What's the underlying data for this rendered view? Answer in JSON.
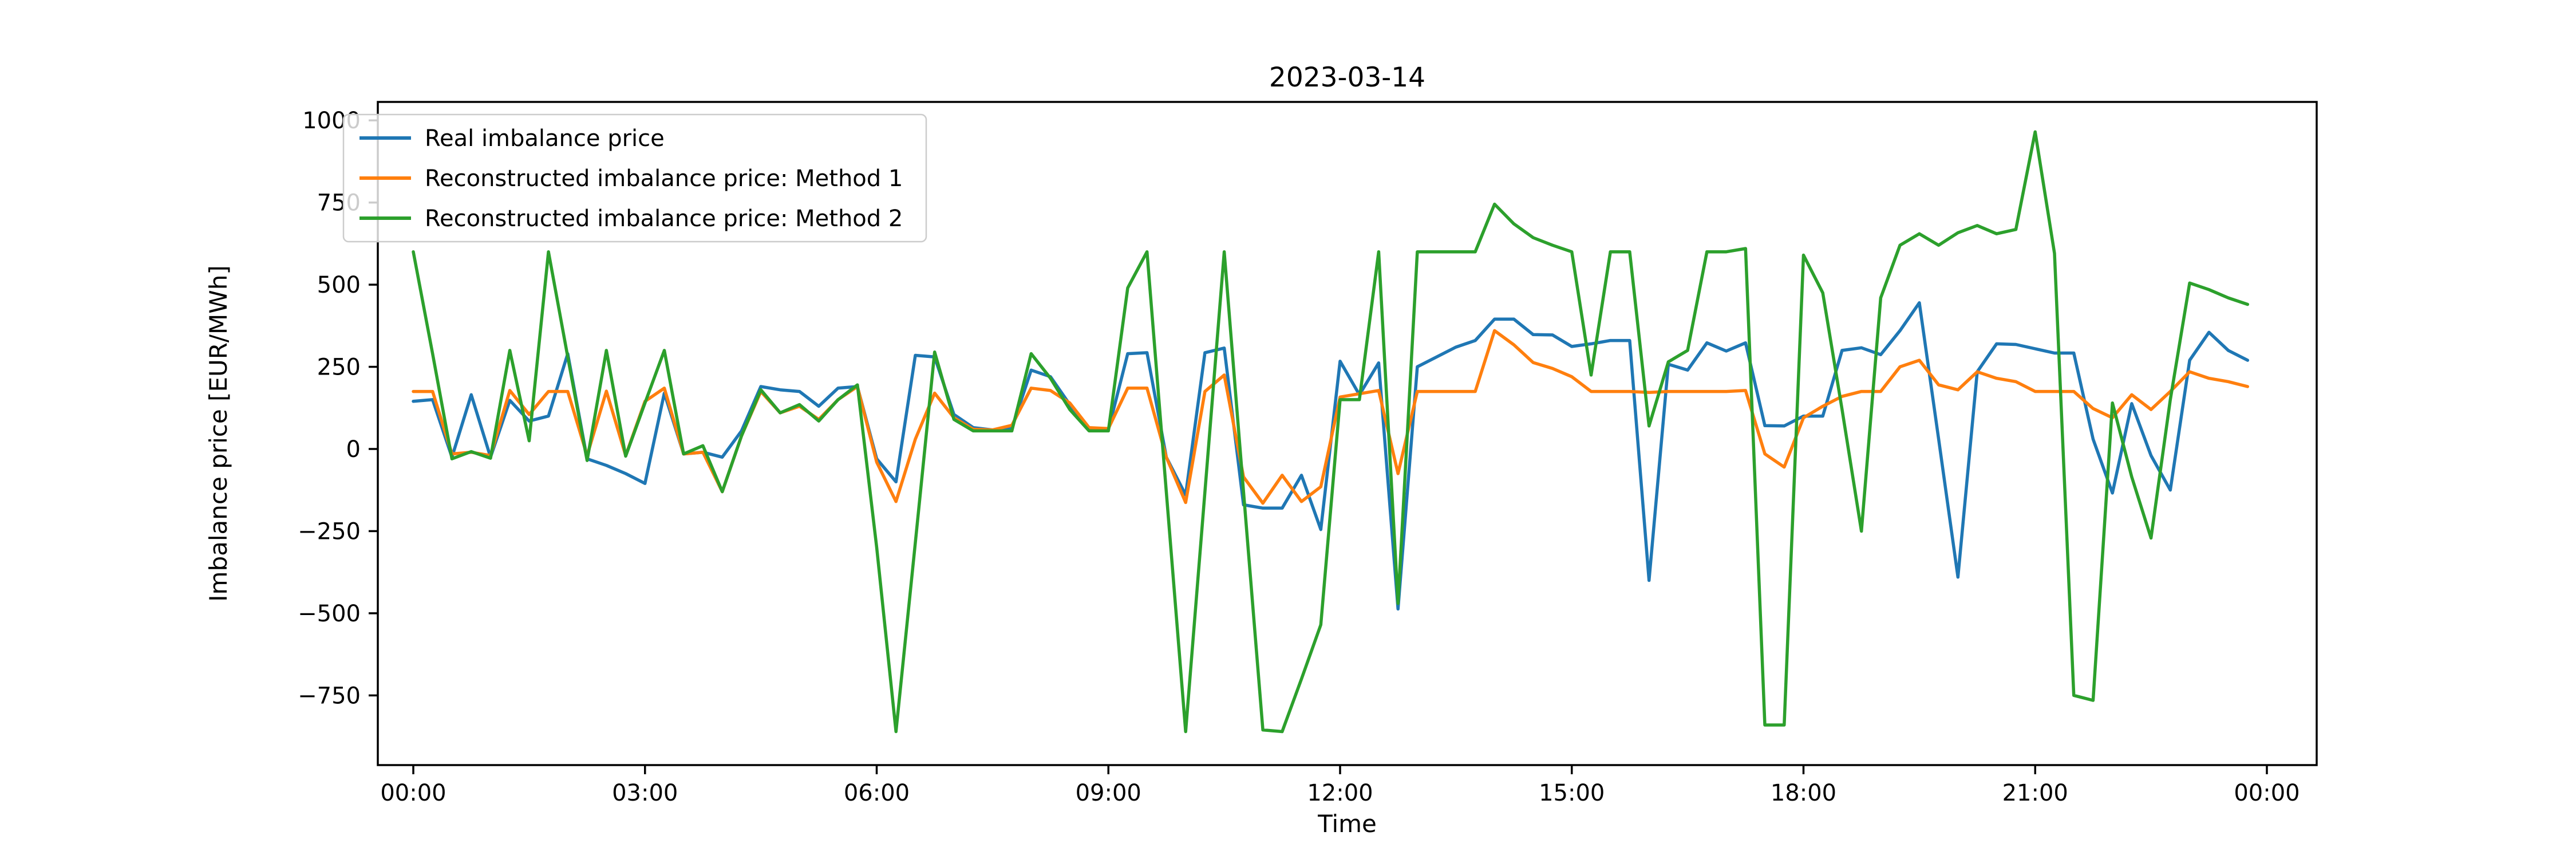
{
  "chart_data": {
    "type": "line",
    "title": "2023-03-14",
    "xlabel": "Time",
    "ylabel": "Imbalance price [EUR/MWh]",
    "grid": false,
    "legend_position": "upper left",
    "ylim": [
      -960,
      1060
    ],
    "y_ticks": [
      {
        "value": 1000,
        "label": "1000"
      },
      {
        "value": 750,
        "label": "750"
      },
      {
        "value": 500,
        "label": "500"
      },
      {
        "value": 250,
        "label": "250"
      },
      {
        "value": 0,
        "label": "0"
      },
      {
        "value": -250,
        "label": "−250"
      },
      {
        "value": -500,
        "label": "−500"
      },
      {
        "value": -750,
        "label": "−750"
      }
    ],
    "x_ticks": [
      {
        "hour": 0,
        "label": "00:00"
      },
      {
        "hour": 3,
        "label": "03:00"
      },
      {
        "hour": 6,
        "label": "06:00"
      },
      {
        "hour": 9,
        "label": "09:00"
      },
      {
        "hour": 12,
        "label": "12:00"
      },
      {
        "hour": 15,
        "label": "15:00"
      },
      {
        "hour": 18,
        "label": "18:00"
      },
      {
        "hour": 21,
        "label": "21:00"
      },
      {
        "hour": 24,
        "label": "00:00"
      }
    ],
    "x": [
      "00:00",
      "00:15",
      "00:30",
      "00:45",
      "01:00",
      "01:15",
      "01:30",
      "01:45",
      "02:00",
      "02:15",
      "02:30",
      "02:45",
      "03:00",
      "03:15",
      "03:30",
      "03:45",
      "04:00",
      "04:15",
      "04:30",
      "04:45",
      "05:00",
      "05:15",
      "05:30",
      "05:45",
      "06:00",
      "06:15",
      "06:30",
      "06:45",
      "07:00",
      "07:15",
      "07:30",
      "07:45",
      "08:00",
      "08:15",
      "08:30",
      "08:45",
      "09:00",
      "09:15",
      "09:30",
      "09:45",
      "10:00",
      "10:15",
      "10:30",
      "10:45",
      "11:00",
      "11:15",
      "11:30",
      "11:45",
      "12:00",
      "12:15",
      "12:30",
      "12:45",
      "13:00",
      "13:15",
      "13:30",
      "13:45",
      "14:00",
      "14:15",
      "14:30",
      "14:45",
      "15:00",
      "15:15",
      "15:30",
      "15:45",
      "16:00",
      "16:15",
      "16:30",
      "16:45",
      "17:00",
      "17:15",
      "17:30",
      "17:45",
      "18:00",
      "18:15",
      "18:30",
      "18:45",
      "19:00",
      "19:15",
      "19:30",
      "19:45",
      "20:00",
      "20:15",
      "20:30",
      "20:45",
      "21:00",
      "21:15",
      "21:30",
      "21:45",
      "22:00",
      "22:15",
      "22:30",
      "22:45",
      "23:00",
      "23:15",
      "23:30",
      "23:45"
    ],
    "series": [
      {
        "name": "Real imbalance price",
        "color": "#1f77b4",
        "values": [
          145,
          150,
          -25,
          165,
          -25,
          148,
          85,
          100,
          290,
          -30,
          -50,
          -75,
          -105,
          170,
          -15,
          -10,
          -25,
          55,
          190,
          180,
          175,
          130,
          185,
          190,
          -30,
          -100,
          285,
          280,
          105,
          65,
          58,
          62,
          240,
          220,
          135,
          60,
          58,
          290,
          293,
          -25,
          -140,
          293,
          307,
          -170,
          -180,
          -180,
          -80,
          -245,
          267,
          165,
          262,
          -487,
          250,
          280,
          310,
          330,
          395,
          395,
          348,
          347,
          312,
          320,
          330,
          330,
          -400,
          258,
          240,
          323,
          298,
          323,
          71,
          70,
          100,
          100,
          300,
          308,
          287,
          360,
          445,
          30,
          -390,
          235,
          320,
          318,
          305,
          292,
          292,
          30,
          -134,
          138,
          -20,
          -125,
          270,
          355,
          300,
          270
        ]
      },
      {
        "name": "Reconstructed imbalance price: Method 1",
        "color": "#ff7f0e",
        "values": [
          175,
          175,
          -15,
          -10,
          -20,
          178,
          105,
          175,
          175,
          -20,
          176,
          -20,
          145,
          185,
          -15,
          -10,
          -130,
          40,
          175,
          110,
          130,
          90,
          150,
          190,
          -40,
          -160,
          30,
          170,
          95,
          60,
          58,
          72,
          185,
          178,
          140,
          65,
          62,
          185,
          185,
          -25,
          -163,
          175,
          225,
          -85,
          -165,
          -80,
          -160,
          -115,
          158,
          168,
          178,
          -75,
          175,
          175,
          175,
          175,
          360,
          317,
          263,
          245,
          220,
          175,
          175,
          175,
          172,
          175,
          175,
          175,
          175,
          178,
          -15,
          -55,
          95,
          130,
          160,
          175,
          175,
          250,
          270,
          195,
          180,
          235,
          215,
          205,
          175,
          175,
          175,
          123,
          95,
          165,
          120,
          175,
          235,
          215,
          205,
          190
        ]
      },
      {
        "name": "Reconstructed imbalance price: Method 2",
        "color": "#2ca02c",
        "values": [
          600,
          290,
          -30,
          -8,
          -28,
          300,
          25,
          600,
          280,
          -35,
          300,
          -22,
          140,
          300,
          -15,
          10,
          -130,
          40,
          180,
          110,
          135,
          85,
          150,
          195,
          -300,
          -860,
          -285,
          295,
          90,
          55,
          55,
          55,
          290,
          215,
          120,
          55,
          55,
          490,
          600,
          -130,
          -860,
          -130,
          600,
          -130,
          -855,
          -860,
          -700,
          -535,
          150,
          150,
          600,
          -470,
          600,
          600,
          600,
          600,
          745,
          685,
          643,
          620,
          600,
          225,
          600,
          600,
          70,
          265,
          300,
          600,
          600,
          610,
          -840,
          -840,
          590,
          475,
          120,
          -250,
          460,
          620,
          655,
          620,
          658,
          680,
          655,
          668,
          965,
          595,
          -750,
          -765,
          140,
          -85,
          -271,
          150,
          505,
          485,
          460,
          440
        ]
      }
    ]
  }
}
